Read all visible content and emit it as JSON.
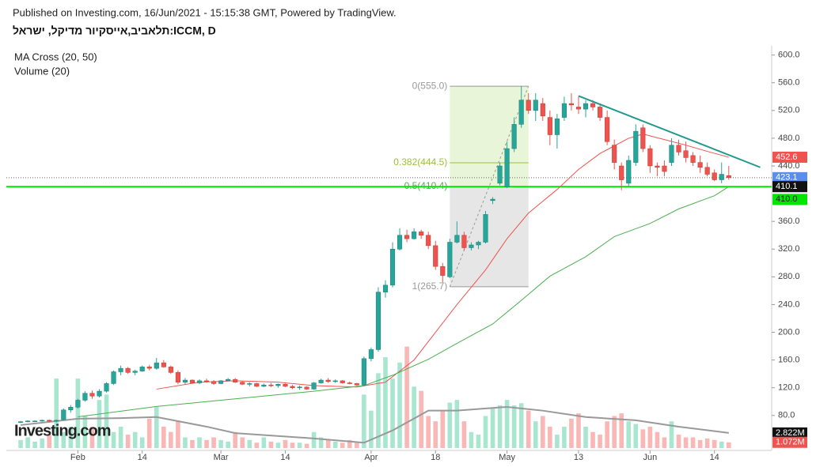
{
  "header": {
    "published": "Published on Investing.com, 16/Jun/2021 - 15:15:38 GMT, Powered by TradingView.",
    "symbol": "תלאביב,אייסקיור מדיקל, ישראל:ICCM, D"
  },
  "chart_data": {
    "type": "candlestick",
    "indicators": [
      "MA Cross (20, 50)",
      "Volume (20)"
    ],
    "logo": "Investing.com",
    "xlim": [
      -2,
      105
    ],
    "xticks": [
      {
        "value": 8,
        "label": "Feb"
      },
      {
        "value": 17,
        "label": "14"
      },
      {
        "value": 28,
        "label": "Mar"
      },
      {
        "value": 37,
        "label": "14"
      },
      {
        "value": 49,
        "label": "Apr"
      },
      {
        "value": 58,
        "label": "18"
      },
      {
        "value": 68,
        "label": "May"
      },
      {
        "value": 78,
        "label": "13"
      },
      {
        "value": 88,
        "label": "Jun"
      },
      {
        "value": 97,
        "label": "14"
      }
    ],
    "ylim": [
      33,
      611
    ],
    "yticks": [
      {
        "value": 80,
        "label": "80.0"
      },
      {
        "value": 120,
        "label": "120.0"
      },
      {
        "value": 160,
        "label": "160.0"
      },
      {
        "value": 200,
        "label": "200.0"
      },
      {
        "value": 240,
        "label": "240.0"
      },
      {
        "value": 280,
        "label": "280.0"
      },
      {
        "value": 320,
        "label": "320.0"
      },
      {
        "value": 360,
        "label": "360.0"
      },
      {
        "value": 440,
        "label": "440.0"
      },
      {
        "value": 480,
        "label": "480.0"
      },
      {
        "value": 520,
        "label": "520.0"
      },
      {
        "value": 560,
        "label": "560.0"
      },
      {
        "value": 600,
        "label": "600.0"
      }
    ],
    "up_color": "#26a69a",
    "down_color": "#ef5350",
    "ohlc": [
      [
        70,
        72,
        69,
        71
      ],
      [
        71,
        73,
        70,
        72
      ],
      [
        72,
        73,
        71,
        72
      ],
      [
        72,
        74,
        71,
        73
      ],
      [
        73,
        74,
        71,
        72
      ],
      [
        72,
        74,
        70,
        73
      ],
      [
        74,
        90,
        73,
        88
      ],
      [
        88,
        95,
        84,
        92
      ],
      [
        92,
        104,
        90,
        102
      ],
      [
        102,
        115,
        100,
        112
      ],
      [
        112,
        116,
        104,
        108
      ],
      [
        108,
        118,
        106,
        115
      ],
      [
        115,
        128,
        113,
        126
      ],
      [
        126,
        145,
        124,
        143
      ],
      [
        143,
        152,
        138,
        148
      ],
      [
        148,
        150,
        140,
        142
      ],
      [
        142,
        146,
        138,
        144
      ],
      [
        144,
        152,
        143,
        150
      ],
      [
        150,
        153,
        145,
        148
      ],
      [
        148,
        163,
        146,
        156
      ],
      [
        156,
        160,
        149,
        150
      ],
      [
        150,
        152,
        140,
        142
      ],
      [
        142,
        145,
        125,
        128
      ],
      [
        128,
        134,
        124,
        131
      ],
      [
        131,
        132,
        126,
        127
      ],
      [
        127,
        132,
        125,
        130
      ],
      [
        130,
        133,
        127,
        129
      ],
      [
        129,
        131,
        124,
        126
      ],
      [
        126,
        131,
        125,
        130
      ],
      [
        130,
        134,
        129,
        132
      ],
      [
        132,
        134,
        127,
        128
      ],
      [
        128,
        130,
        124,
        125
      ],
      [
        125,
        128,
        122,
        126
      ],
      [
        126,
        127,
        121,
        122
      ],
      [
        122,
        126,
        121,
        124
      ],
      [
        124,
        127,
        121,
        123
      ],
      [
        123,
        126,
        120,
        125
      ],
      [
        125,
        126,
        121,
        122
      ],
      [
        122,
        124,
        118,
        120
      ],
      [
        120,
        123,
        117,
        121
      ],
      [
        121,
        122,
        117,
        118
      ],
      [
        118,
        128,
        117,
        127
      ],
      [
        127,
        133,
        126,
        131
      ],
      [
        131,
        134,
        127,
        129
      ],
      [
        129,
        132,
        127,
        130
      ],
      [
        130,
        131,
        126,
        127
      ],
      [
        127,
        129,
        125,
        126
      ],
      [
        126,
        127,
        123,
        124
      ],
      [
        124,
        165,
        122,
        162
      ],
      [
        162,
        178,
        158,
        175
      ],
      [
        175,
        265,
        172,
        258
      ],
      [
        258,
        275,
        250,
        268
      ],
      [
        268,
        330,
        265,
        320
      ],
      [
        320,
        350,
        318,
        340
      ],
      [
        340,
        348,
        330,
        335
      ],
      [
        335,
        350,
        334,
        345
      ],
      [
        345,
        348,
        335,
        340
      ],
      [
        340,
        345,
        320,
        325
      ],
      [
        325,
        332,
        290,
        295
      ],
      [
        295,
        300,
        272,
        282
      ],
      [
        280,
        335,
        278,
        330
      ],
      [
        330,
        360,
        328,
        340
      ],
      [
        340,
        345,
        318,
        322
      ],
      [
        322,
        330,
        318,
        326
      ],
      [
        326,
        332,
        320,
        330
      ],
      [
        330,
        375,
        328,
        370
      ],
      [
        390,
        395,
        385,
        392
      ],
      [
        415,
        445,
        412,
        440
      ],
      [
        410,
        475,
        408,
        465
      ],
      [
        465,
        510,
        460,
        500
      ],
      [
        500,
        555,
        495,
        535
      ],
      [
        535,
        545,
        515,
        520
      ],
      [
        520,
        545,
        505,
        535
      ],
      [
        530,
        538,
        505,
        512
      ],
      [
        510,
        520,
        470,
        485
      ],
      [
        485,
        515,
        465,
        508
      ],
      [
        510,
        540,
        505,
        530
      ],
      [
        530,
        545,
        520,
        528
      ],
      [
        525,
        540,
        515,
        522
      ],
      [
        522,
        535,
        510,
        530
      ],
      [
        530,
        535,
        520,
        525
      ],
      [
        525,
        530,
        505,
        510
      ],
      [
        510,
        520,
        470,
        475
      ],
      [
        470,
        478,
        435,
        445
      ],
      [
        440,
        445,
        405,
        420
      ],
      [
        415,
        455,
        410,
        448
      ],
      [
        445,
        500,
        440,
        490
      ],
      [
        495,
        500,
        460,
        465
      ],
      [
        465,
        470,
        430,
        440
      ],
      [
        440,
        445,
        425,
        438
      ],
      [
        440,
        448,
        425,
        432
      ],
      [
        445,
        480,
        440,
        470
      ],
      [
        470,
        478,
        455,
        460
      ],
      [
        462,
        475,
        445,
        452
      ],
      [
        455,
        460,
        440,
        445
      ],
      [
        445,
        455,
        430,
        438
      ],
      [
        438,
        445,
        425,
        428
      ],
      [
        430,
        435,
        418,
        420
      ],
      [
        420,
        445,
        415,
        428
      ],
      [
        426,
        440,
        420,
        423.1
      ]
    ],
    "volume_ylim": [
      0,
      75
    ],
    "volume_up_color": "#a8e6d0",
    "volume_down_color": "#f9b8b5",
    "volume": [
      1.5,
      2,
      1.2,
      1.8,
      2.5,
      13,
      3,
      4,
      13,
      6,
      4,
      9,
      10,
      3,
      4,
      2.5,
      3,
      2,
      5.5,
      7.7,
      4,
      3,
      5,
      2,
      1.5,
      2,
      1.5,
      2,
      1.5,
      1.2,
      3,
      2,
      1.5,
      1,
      2,
      1.2,
      1,
      1.5,
      1,
      1,
      0.8,
      3,
      2,
      1.5,
      1.2,
      1,
      1.5,
      1,
      10,
      7,
      14,
      17,
      13,
      16,
      19,
      11.5,
      10.7,
      6,
      5,
      7,
      8.5,
      9,
      5,
      3,
      2.5,
      6,
      7.5,
      8,
      9,
      8,
      8.4,
      7,
      5,
      6,
      4,
      2.5,
      4,
      5.5,
      6.5,
      4,
      3,
      2.5,
      5,
      6,
      6.5,
      5,
      4.5,
      3.5,
      4,
      3,
      2,
      5,
      2.5,
      2,
      2,
      1.5,
      1.8,
      1.5,
      1.2,
      1.072
    ],
    "series": [
      {
        "name": "MA 20",
        "color": "#ef5350",
        "x": [
          19,
          25,
          30,
          36,
          41,
          47,
          51,
          55,
          58,
          61,
          65,
          68,
          71,
          75,
          78,
          81,
          85,
          87,
          90,
          93,
          96,
          99
        ],
        "values": [
          118,
          128,
          130,
          128,
          123,
          121,
          128,
          160,
          200,
          240,
          290,
          335,
          372,
          406,
          435,
          458,
          480,
          486,
          478,
          470,
          461,
          452.6
        ]
      },
      {
        "name": "MA 50",
        "color": "#4caf50",
        "x": [
          8,
          19,
          30,
          41,
          48,
          52,
          57,
          61,
          66,
          70,
          74,
          79,
          83,
          88,
          92,
          97,
          99
        ],
        "values": [
          78,
          93,
          104,
          115,
          123,
          138,
          161,
          184,
          212,
          246,
          281,
          309,
          338,
          357,
          378,
          397,
          410.1
        ]
      },
      {
        "name": "Volume MA",
        "color": "#999999",
        "axis": "volume",
        "x": [
          0,
          8,
          14,
          19,
          26,
          30,
          41,
          48,
          52,
          57,
          61,
          68,
          73,
          79,
          86,
          92,
          99
        ],
        "values": [
          4.3,
          5.5,
          5.6,
          5.8,
          4,
          2.8,
          1.8,
          1,
          3.3,
          7,
          7,
          7.7,
          7,
          5.8,
          5.2,
          4,
          2.822
        ]
      }
    ],
    "fib": {
      "x": [
        60,
        71
      ],
      "levels": [
        {
          "value": 555,
          "label": "0(555.0)",
          "color": "#999999"
        },
        {
          "value": 444.5,
          "label": "0.382(444.5)",
          "color": "#9bbf3a"
        },
        {
          "value": 410.4,
          "label": "0.5(410.4)",
          "color": "#4caf50"
        },
        {
          "value": 265.7,
          "label": "1(265.7)",
          "color": "#999999"
        }
      ]
    },
    "trendline": {
      "x": [
        78,
        103.4
      ],
      "values": [
        541,
        438
      ],
      "color": "#1e9a8c"
    },
    "hline": {
      "value": 410,
      "label": "410.0",
      "color": "#00e600"
    },
    "price_tags": [
      {
        "value": 452.6,
        "color": "#ef5350"
      },
      {
        "value": 423.1,
        "color": "#5b8def"
      },
      {
        "value": 410.1,
        "color": "#111111"
      }
    ],
    "volume_tags": [
      {
        "value": 2.822,
        "label": "2.822M",
        "color": "#111111"
      },
      {
        "value": 1.072,
        "label": "1.072M",
        "color": "#ef5350"
      }
    ]
  }
}
